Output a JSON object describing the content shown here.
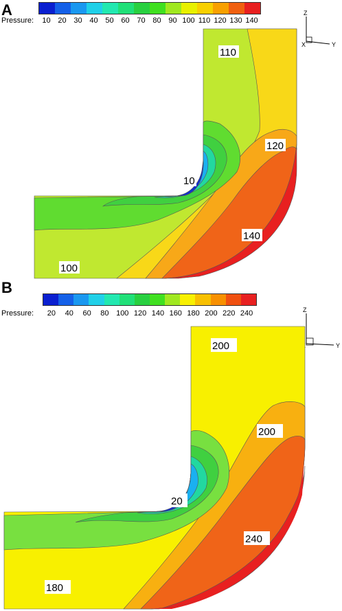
{
  "panels": [
    {
      "letter": "A",
      "legend_title": "Pressure:",
      "legend_ticks": [
        "10",
        "20",
        "30",
        "40",
        "50",
        "60",
        "70",
        "80",
        "90",
        "100",
        "110",
        "120",
        "130",
        "140"
      ],
      "legend_colors": [
        "#0a1fd0",
        "#1460e8",
        "#1a98f0",
        "#20d0e8",
        "#22e8b0",
        "#20e078",
        "#28d040",
        "#40e020",
        "#a0e820",
        "#e8f000",
        "#f8d000",
        "#f8a000",
        "#f06010",
        "#e82020"
      ],
      "axes": {
        "z": "Z",
        "y": "Y",
        "x": "X"
      },
      "contour_labels": [
        "110",
        "120",
        "10",
        "140",
        "100"
      ]
    },
    {
      "letter": "B",
      "legend_title": "Pressure:",
      "legend_ticks": [
        "20",
        "40",
        "60",
        "80",
        "100",
        "120",
        "140",
        "160",
        "180",
        "200",
        "220",
        "240"
      ],
      "legend_colors": [
        "#0a1fd0",
        "#1460e8",
        "#1a98f0",
        "#20d0e8",
        "#22e8b0",
        "#20e078",
        "#28d040",
        "#40e020",
        "#a0e820",
        "#f8f000",
        "#f8c000",
        "#f89000",
        "#f05010",
        "#e82020"
      ],
      "axes": {
        "z": "Z",
        "y": "Y",
        "x": "X"
      },
      "contour_labels": [
        "200",
        "200",
        "20",
        "240",
        "180"
      ]
    }
  ]
}
